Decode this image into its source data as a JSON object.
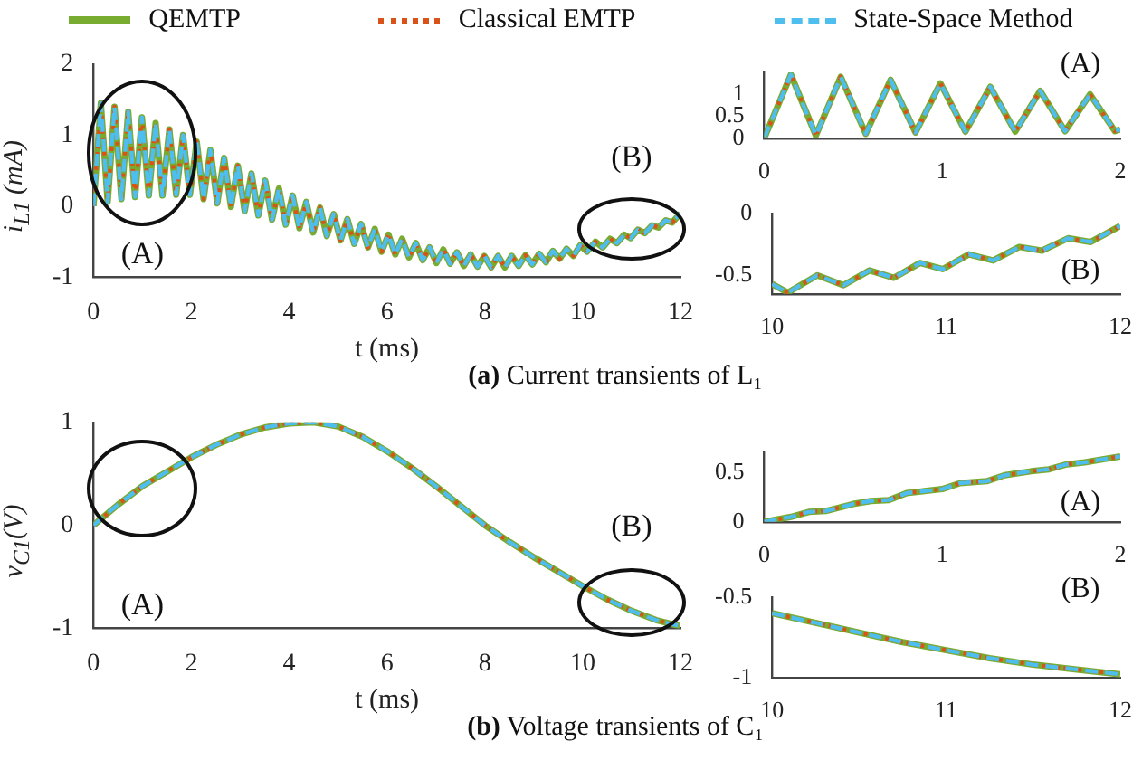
{
  "chart_data": [
    {
      "type": "line",
      "ylabel": "i$_{L1}$ (mA)",
      "xlabel": "t (ms)",
      "legend": "top",
      "xlim": [
        0,
        12
      ],
      "xticks": [
        0,
        2,
        4,
        6,
        8,
        10,
        12
      ],
      "ylim": [
        -1,
        2
      ],
      "yticks": [
        -1,
        0,
        1,
        2
      ],
      "annotations": [
        "(A)",
        "(B)",
        "(a) Current transients of L₁"
      ],
      "x": [
        0,
        0.15,
        0.29,
        0.43,
        0.57,
        0.71,
        0.85,
        0.99,
        1.13,
        1.27,
        1.41,
        1.55,
        1.69,
        1.83,
        1.97,
        2.11,
        2.25,
        2.39,
        2.53,
        2.67,
        2.81,
        2.95,
        3.09,
        3.23,
        3.37,
        3.51,
        3.65,
        3.79,
        3.93,
        4.07,
        4.21,
        4.35,
        4.49,
        4.63,
        4.77,
        4.91,
        5.05,
        5.19,
        5.33,
        5.47,
        5.61,
        5.75,
        5.89,
        6.03,
        6.17,
        6.31,
        6.45,
        6.59,
        6.73,
        6.87,
        7.01,
        7.15,
        7.29,
        7.43,
        7.57,
        7.71,
        7.85,
        7.99,
        8.13,
        8.27,
        8.41,
        8.55,
        8.69,
        8.83,
        8.97,
        9.11,
        9.25,
        9.39,
        9.53,
        9.67,
        9.81,
        9.95,
        10.09,
        10.26,
        10.41,
        10.56,
        10.7,
        10.85,
        10.98,
        11.13,
        11.27,
        11.42,
        11.55,
        11.7,
        11.83,
        12
      ],
      "series": [
        {
          "name": "QEMTP",
          "color": "#77ac30",
          "line_style": "solid",
          "values": [
            0,
            1.45,
            0.06,
            1.4,
            0.1,
            1.33,
            0.13,
            1.25,
            0.15,
            1.17,
            0.15,
            1.08,
            0.16,
            1,
            0.16,
            0.91,
            0.1,
            0.79,
            0.04,
            0.68,
            -0.01,
            0.57,
            -0.07,
            0.46,
            -0.13,
            0.36,
            -0.19,
            0.25,
            -0.26,
            0.15,
            -0.31,
            0.06,
            -0.37,
            -0.02,
            -0.42,
            -0.11,
            -0.48,
            -0.18,
            -0.53,
            -0.25,
            -0.58,
            -0.32,
            -0.64,
            -0.4,
            -0.68,
            -0.46,
            -0.72,
            -0.52,
            -0.76,
            -0.58,
            -0.8,
            -0.61,
            -0.81,
            -0.65,
            -0.84,
            -0.68,
            -0.85,
            -0.7,
            -0.86,
            -0.7,
            -0.86,
            -0.7,
            -0.84,
            -0.69,
            -0.82,
            -0.67,
            -0.79,
            -0.63,
            -0.74,
            -0.6,
            -0.7,
            -0.55,
            -0.64,
            -0.5,
            -0.58,
            -0.46,
            -0.52,
            -0.4,
            -0.45,
            -0.33,
            -0.38,
            -0.27,
            -0.3,
            -0.2,
            -0.23,
            -0.1
          ]
        },
        {
          "name": "Classical EMTP",
          "color": "#d95319",
          "line_style": "dotted",
          "values": [
            0,
            1.45,
            0.06,
            1.4,
            0.1,
            1.33,
            0.13,
            1.25,
            0.15,
            1.17,
            0.15,
            1.08,
            0.16,
            1,
            0.16,
            0.91,
            0.1,
            0.79,
            0.04,
            0.68,
            -0.01,
            0.57,
            -0.07,
            0.46,
            -0.13,
            0.36,
            -0.19,
            0.25,
            -0.26,
            0.15,
            -0.31,
            0.06,
            -0.37,
            -0.02,
            -0.42,
            -0.11,
            -0.48,
            -0.18,
            -0.53,
            -0.25,
            -0.58,
            -0.32,
            -0.64,
            -0.4,
            -0.68,
            -0.46,
            -0.72,
            -0.52,
            -0.76,
            -0.58,
            -0.8,
            -0.61,
            -0.81,
            -0.65,
            -0.84,
            -0.68,
            -0.85,
            -0.7,
            -0.86,
            -0.7,
            -0.86,
            -0.7,
            -0.84,
            -0.69,
            -0.82,
            -0.67,
            -0.79,
            -0.63,
            -0.74,
            -0.6,
            -0.7,
            -0.55,
            -0.64,
            -0.5,
            -0.58,
            -0.46,
            -0.52,
            -0.4,
            -0.45,
            -0.33,
            -0.38,
            -0.27,
            -0.3,
            -0.2,
            -0.23,
            -0.1
          ]
        },
        {
          "name": "State-Space Method",
          "color": "#4dbeee",
          "line_style": "dashed",
          "values": [
            0,
            1.45,
            0.06,
            1.4,
            0.1,
            1.33,
            0.13,
            1.25,
            0.15,
            1.17,
            0.15,
            1.08,
            0.16,
            1,
            0.16,
            0.91,
            0.1,
            0.79,
            0.04,
            0.68,
            -0.01,
            0.57,
            -0.07,
            0.46,
            -0.13,
            0.36,
            -0.19,
            0.25,
            -0.26,
            0.15,
            -0.31,
            0.06,
            -0.37,
            -0.02,
            -0.42,
            -0.11,
            -0.48,
            -0.18,
            -0.53,
            -0.25,
            -0.58,
            -0.32,
            -0.64,
            -0.4,
            -0.68,
            -0.46,
            -0.72,
            -0.52,
            -0.76,
            -0.58,
            -0.8,
            -0.61,
            -0.81,
            -0.65,
            -0.84,
            -0.68,
            -0.85,
            -0.7,
            -0.86,
            -0.7,
            -0.86,
            -0.7,
            -0.84,
            -0.69,
            -0.82,
            -0.67,
            -0.79,
            -0.63,
            -0.74,
            -0.6,
            -0.7,
            -0.55,
            -0.64,
            -0.5,
            -0.58,
            -0.46,
            -0.52,
            -0.4,
            -0.45,
            -0.33,
            -0.38,
            -0.27,
            -0.3,
            -0.2,
            -0.23,
            -0.1
          ]
        }
      ]
    },
    {
      "type": "line",
      "xlim": [
        0,
        2
      ],
      "xticks": [
        0,
        1,
        2
      ],
      "ylim": [
        0,
        1.5
      ],
      "yticks": [
        0,
        0.5,
        1
      ],
      "annotations": [
        "(A)"
      ],
      "x": [
        0,
        0.15,
        0.29,
        0.43,
        0.57,
        0.71,
        0.85,
        0.99,
        1.13,
        1.27,
        1.41,
        1.55,
        1.69,
        1.83,
        1.97,
        2
      ],
      "series": [
        {
          "color": "#77ac30",
          "line_style": "solid",
          "values": [
            0,
            1.45,
            0.06,
            1.4,
            0.1,
            1.33,
            0.13,
            1.25,
            0.15,
            1.17,
            0.15,
            1.08,
            0.16,
            1,
            0.16,
            0.2
          ]
        },
        {
          "color": "#d95319",
          "line_style": "dotted",
          "values": [
            0,
            1.45,
            0.06,
            1.4,
            0.1,
            1.33,
            0.13,
            1.25,
            0.15,
            1.17,
            0.15,
            1.08,
            0.16,
            1,
            0.16,
            0.2
          ]
        },
        {
          "color": "#4dbeee",
          "line_style": "dashed",
          "values": [
            0,
            1.45,
            0.06,
            1.4,
            0.1,
            1.33,
            0.13,
            1.25,
            0.15,
            1.17,
            0.15,
            1.08,
            0.16,
            1,
            0.16,
            0.2
          ]
        }
      ]
    },
    {
      "type": "line",
      "xlim": [
        10,
        12
      ],
      "xticks": [
        10,
        11,
        12
      ],
      "ylim": [
        -0.65,
        0
      ],
      "yticks": [
        -0.5,
        0
      ],
      "annotations": [
        "(B)"
      ],
      "x": [
        10,
        10.09,
        10.26,
        10.41,
        10.56,
        10.7,
        10.85,
        10.98,
        11.13,
        11.27,
        11.42,
        11.55,
        11.7,
        11.83,
        12
      ],
      "series": [
        {
          "color": "#77ac30",
          "line_style": "solid",
          "values": [
            -0.57,
            -0.64,
            -0.5,
            -0.58,
            -0.46,
            -0.52,
            -0.4,
            -0.45,
            -0.33,
            -0.38,
            -0.27,
            -0.3,
            -0.2,
            -0.23,
            -0.1
          ]
        },
        {
          "color": "#d95319",
          "line_style": "dotted",
          "values": [
            -0.57,
            -0.64,
            -0.5,
            -0.58,
            -0.46,
            -0.52,
            -0.4,
            -0.45,
            -0.33,
            -0.38,
            -0.27,
            -0.3,
            -0.2,
            -0.23,
            -0.1
          ]
        },
        {
          "color": "#4dbeee",
          "line_style": "dashed",
          "values": [
            -0.57,
            -0.64,
            -0.5,
            -0.58,
            -0.46,
            -0.52,
            -0.4,
            -0.45,
            -0.33,
            -0.38,
            -0.27,
            -0.3,
            -0.2,
            -0.23,
            -0.1
          ]
        }
      ]
    },
    {
      "type": "line",
      "ylabel": "v$_{C1}$(V)",
      "xlabel": "t (ms)",
      "xlim": [
        0,
        12
      ],
      "xticks": [
        0,
        2,
        4,
        6,
        8,
        10,
        12
      ],
      "ylim": [
        -1,
        1
      ],
      "yticks": [
        -1,
        0,
        1
      ],
      "annotations": [
        "(A)",
        "(B)",
        "(b) Voltage transients of C₁"
      ],
      "x": [
        0,
        0.5,
        1,
        1.5,
        2,
        2.5,
        3,
        3.5,
        4,
        4.5,
        5,
        5.5,
        6,
        6.5,
        7,
        7.5,
        8,
        8.5,
        9,
        9.5,
        10,
        10.5,
        11,
        11.5,
        12
      ],
      "series": [
        {
          "color": "#77ac30",
          "line_style": "solid",
          "values": [
            0,
            0.2,
            0.38,
            0.52,
            0.66,
            0.78,
            0.88,
            0.95,
            0.99,
            1,
            0.96,
            0.86,
            0.72,
            0.56,
            0.38,
            0.19,
            0,
            -0.16,
            -0.31,
            -0.45,
            -0.59,
            -0.72,
            -0.83,
            -0.92,
            -0.98
          ]
        },
        {
          "color": "#d95319",
          "line_style": "dotted",
          "values": [
            0,
            0.2,
            0.38,
            0.52,
            0.66,
            0.78,
            0.88,
            0.95,
            0.99,
            1,
            0.96,
            0.86,
            0.72,
            0.56,
            0.38,
            0.19,
            0,
            -0.16,
            -0.31,
            -0.45,
            -0.59,
            -0.72,
            -0.83,
            -0.92,
            -0.98
          ]
        },
        {
          "color": "#4dbeee",
          "line_style": "dashed",
          "values": [
            0,
            0.2,
            0.38,
            0.52,
            0.66,
            0.78,
            0.88,
            0.95,
            0.99,
            1,
            0.96,
            0.86,
            0.72,
            0.56,
            0.38,
            0.19,
            0,
            -0.16,
            -0.31,
            -0.45,
            -0.59,
            -0.72,
            -0.83,
            -0.92,
            -0.98
          ]
        }
      ]
    },
    {
      "type": "line",
      "xlim": [
        0,
        2
      ],
      "xticks": [
        0,
        1,
        2
      ],
      "ylim": [
        0,
        0.7
      ],
      "yticks": [
        0,
        0.5
      ],
      "annotations": [
        "(A)"
      ],
      "x": [
        0,
        0.15,
        0.25,
        0.35,
        0.5,
        0.6,
        0.7,
        0.8,
        0.9,
        1,
        1.1,
        1.25,
        1.35,
        1.5,
        1.6,
        1.7,
        1.8,
        2
      ],
      "series": [
        {
          "color": "#77ac30",
          "line_style": "solid",
          "values": [
            0,
            0.05,
            0.1,
            0.11,
            0.18,
            0.21,
            0.22,
            0.29,
            0.31,
            0.33,
            0.39,
            0.41,
            0.47,
            0.51,
            0.53,
            0.58,
            0.6,
            0.66
          ]
        },
        {
          "color": "#d95319",
          "line_style": "dotted",
          "values": [
            0,
            0.05,
            0.1,
            0.11,
            0.18,
            0.21,
            0.22,
            0.29,
            0.31,
            0.33,
            0.39,
            0.41,
            0.47,
            0.51,
            0.53,
            0.58,
            0.6,
            0.66
          ]
        },
        {
          "color": "#4dbeee",
          "line_style": "dashed",
          "values": [
            0,
            0.05,
            0.1,
            0.11,
            0.18,
            0.21,
            0.22,
            0.29,
            0.31,
            0.33,
            0.39,
            0.41,
            0.47,
            0.51,
            0.53,
            0.58,
            0.6,
            0.66
          ]
        }
      ]
    },
    {
      "type": "line",
      "xlim": [
        10,
        12
      ],
      "xticks": [
        10,
        11,
        12
      ],
      "ylim": [
        -1,
        -0.5
      ],
      "yticks": [
        -1,
        -0.5
      ],
      "annotations": [
        "(B)"
      ],
      "x": [
        10,
        10.25,
        10.5,
        10.75,
        11,
        11.25,
        11.5,
        11.75,
        12
      ],
      "series": [
        {
          "color": "#77ac30",
          "line_style": "solid",
          "values": [
            -0.6,
            -0.66,
            -0.72,
            -0.78,
            -0.83,
            -0.88,
            -0.92,
            -0.95,
            -0.98
          ]
        },
        {
          "color": "#d95319",
          "line_style": "dotted",
          "values": [
            -0.6,
            -0.66,
            -0.72,
            -0.78,
            -0.83,
            -0.88,
            -0.92,
            -0.95,
            -0.98
          ]
        },
        {
          "color": "#4dbeee",
          "line_style": "dashed",
          "values": [
            -0.6,
            -0.66,
            -0.72,
            -0.78,
            -0.83,
            -0.88,
            -0.92,
            -0.95,
            -0.98
          ]
        }
      ]
    }
  ]
}
